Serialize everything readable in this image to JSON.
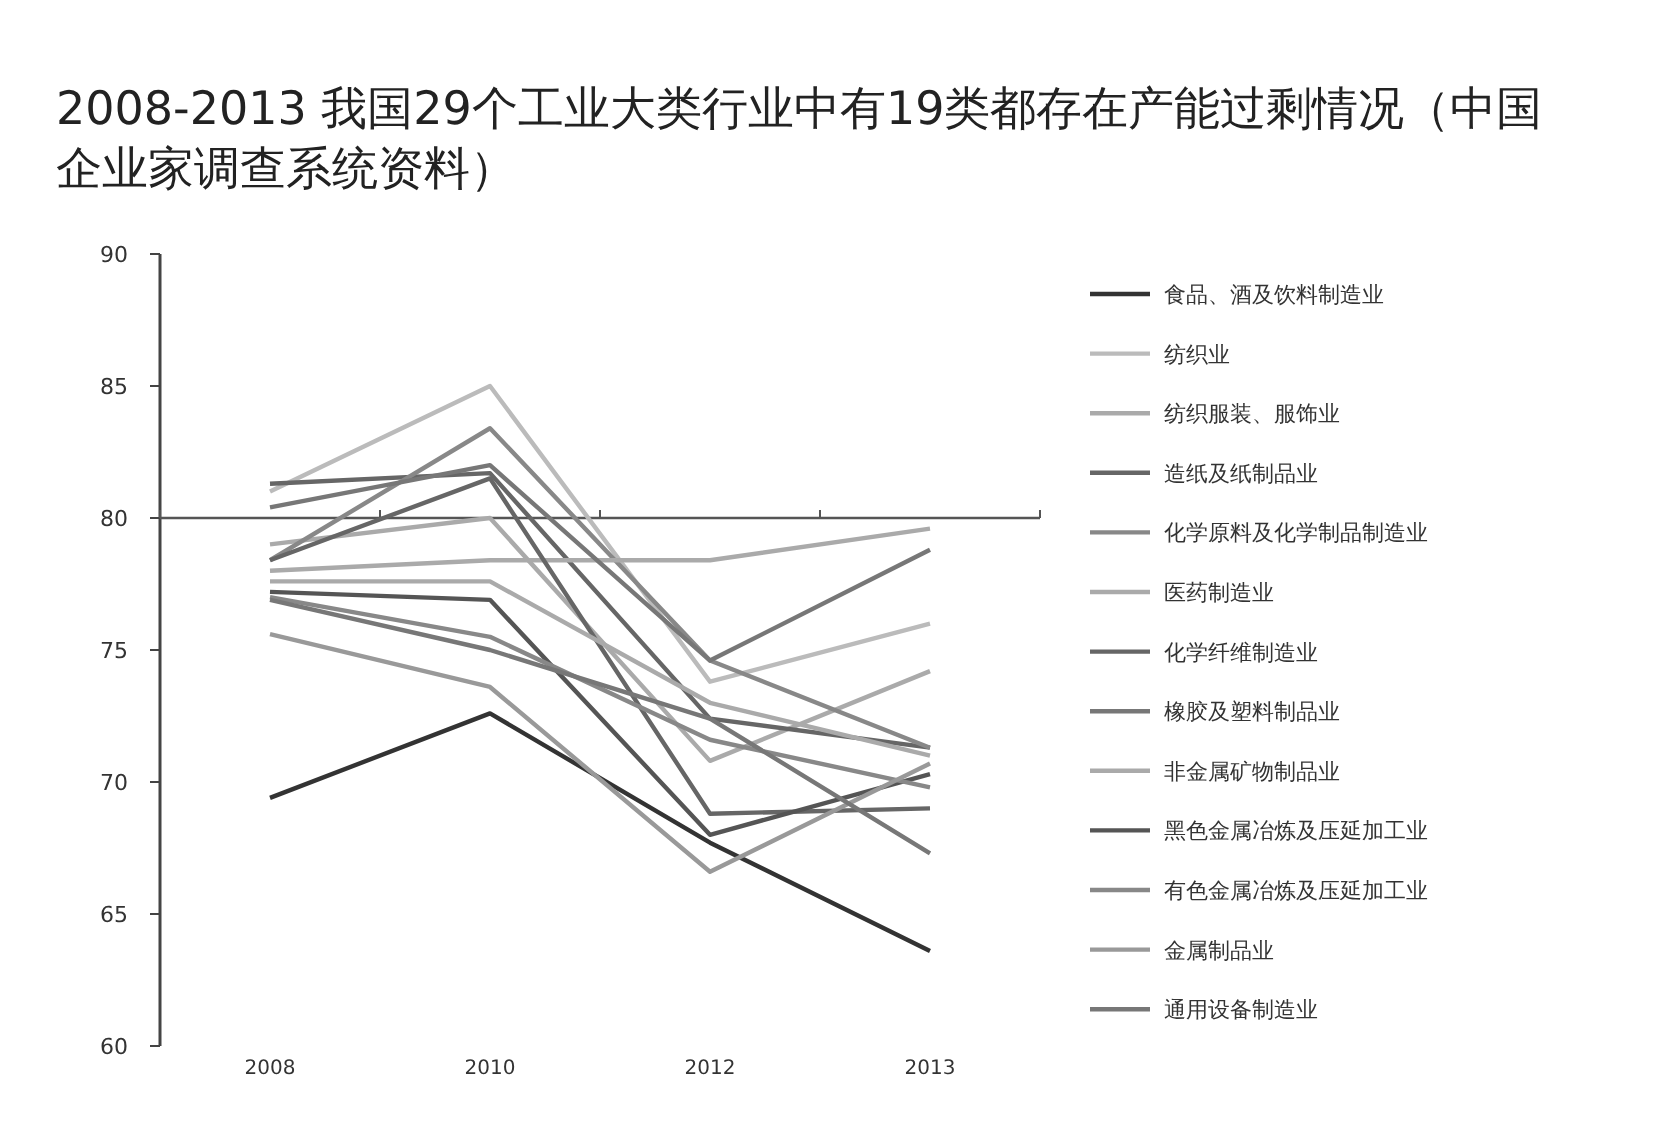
{
  "chart_data": {
    "type": "line",
    "title": "2008-2013 我国29个工业大类行业中有19类都存在产能过剩情况（中国企业家调查系统资料）",
    "categories": [
      "2008",
      "2010",
      "2012",
      "2013"
    ],
    "series": [
      {
        "name": "食品、酒及饮料制造业",
        "color": "#333333",
        "values": [
          69.4,
          72.6,
          67.7,
          63.6
        ]
      },
      {
        "name": "纺织业",
        "color": "#bbbbbb",
        "values": [
          81.0,
          85.0,
          73.8,
          76.0
        ]
      },
      {
        "name": "纺织服装、服饰业",
        "color": "#aaaaaa",
        "values": [
          79.0,
          80.0,
          70.8,
          74.2
        ]
      },
      {
        "name": "造纸及纸制品业",
        "color": "#666666",
        "values": [
          81.3,
          81.7,
          72.4,
          71.3
        ]
      },
      {
        "name": "化学原料及化学制品制造业",
        "color": "#888888",
        "values": [
          78.4,
          83.4,
          74.6,
          71.3
        ]
      },
      {
        "name": "医药制造业",
        "color": "#aaaaaa",
        "values": [
          78.0,
          78.4,
          78.4,
          79.6
        ]
      },
      {
        "name": "化学纤维制造业",
        "color": "#666666",
        "values": [
          78.4,
          81.5,
          68.8,
          69.0
        ]
      },
      {
        "name": "橡胶及塑料制品业",
        "color": "#777777",
        "values": [
          80.4,
          82.0,
          74.6,
          78.8
        ]
      },
      {
        "name": "非金属矿物制品业",
        "color": "#aaaaaa",
        "values": [
          77.6,
          77.6,
          73.0,
          71.0
        ]
      },
      {
        "name": "黑色金属冶炼及压延加工业",
        "color": "#555555",
        "values": [
          77.2,
          76.9,
          68.0,
          70.3
        ]
      },
      {
        "name": "有色金属冶炼及压延加工业",
        "color": "#888888",
        "values": [
          77.0,
          75.5,
          71.6,
          69.8
        ]
      },
      {
        "name": "金属制品业",
        "color": "#999999",
        "values": [
          75.6,
          73.6,
          66.6,
          70.7
        ]
      },
      {
        "name": "通用设备制造业",
        "color": "#777777",
        "values": [
          76.9,
          75.0,
          72.4,
          67.3
        ]
      }
    ],
    "ylim": [
      60,
      90
    ],
    "yticks": [
      60,
      65,
      70,
      75,
      80,
      85,
      90
    ],
    "ref_lines": [
      {
        "axis": "y",
        "value": 80,
        "color": "#555555"
      }
    ],
    "legend": "right",
    "grid": false
  }
}
